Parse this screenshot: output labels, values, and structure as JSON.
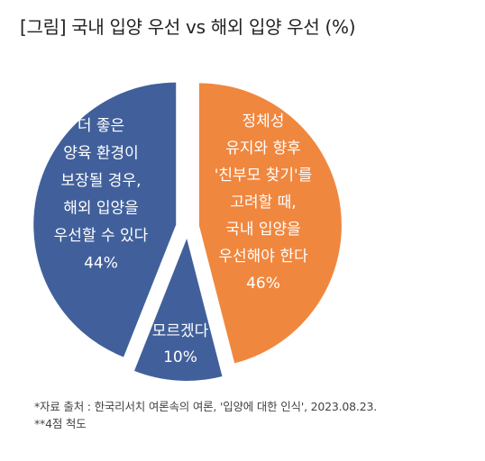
{
  "title": "[그림] 국내 입양 우선 vs 해외 입양 우선 (%)",
  "chart_data": {
    "type": "pie",
    "title": "[그림] 국내 입양 우선 vs 해외 입양 우선 (%)",
    "slices": [
      {
        "name": "정체성 유지와 향후 '친부모 찾기'를 고려할 때, 국내 입양을 우선해야 한다",
        "value": 46,
        "color": "#F0873F",
        "label_lines": [
          "정체성",
          "유지와 향후",
          "'친부모 찾기'를",
          "고려할 때,",
          "국내 입양을",
          "우선해야 한다",
          "46%"
        ]
      },
      {
        "name": "모르겠다",
        "value": 10,
        "color": "#41609B",
        "label_lines": [
          "모르겠다",
          "10%"
        ]
      },
      {
        "name": "더 좋은 양육 환경이 보장될 경우, 해외 입양을 우선할 수 있다",
        "value": 44,
        "color": "#41609B",
        "label_lines": [
          "더 좋은",
          "양육 환경이",
          "보장될 경우,",
          "해외 입양을",
          "우선할 수 있다",
          "44%"
        ]
      }
    ]
  },
  "notes": [
    "*자료 출처 : 한국리서치 여론속의 여론, '입양에 대한 인식', 2023.08.23.",
    "**4점 척도"
  ]
}
